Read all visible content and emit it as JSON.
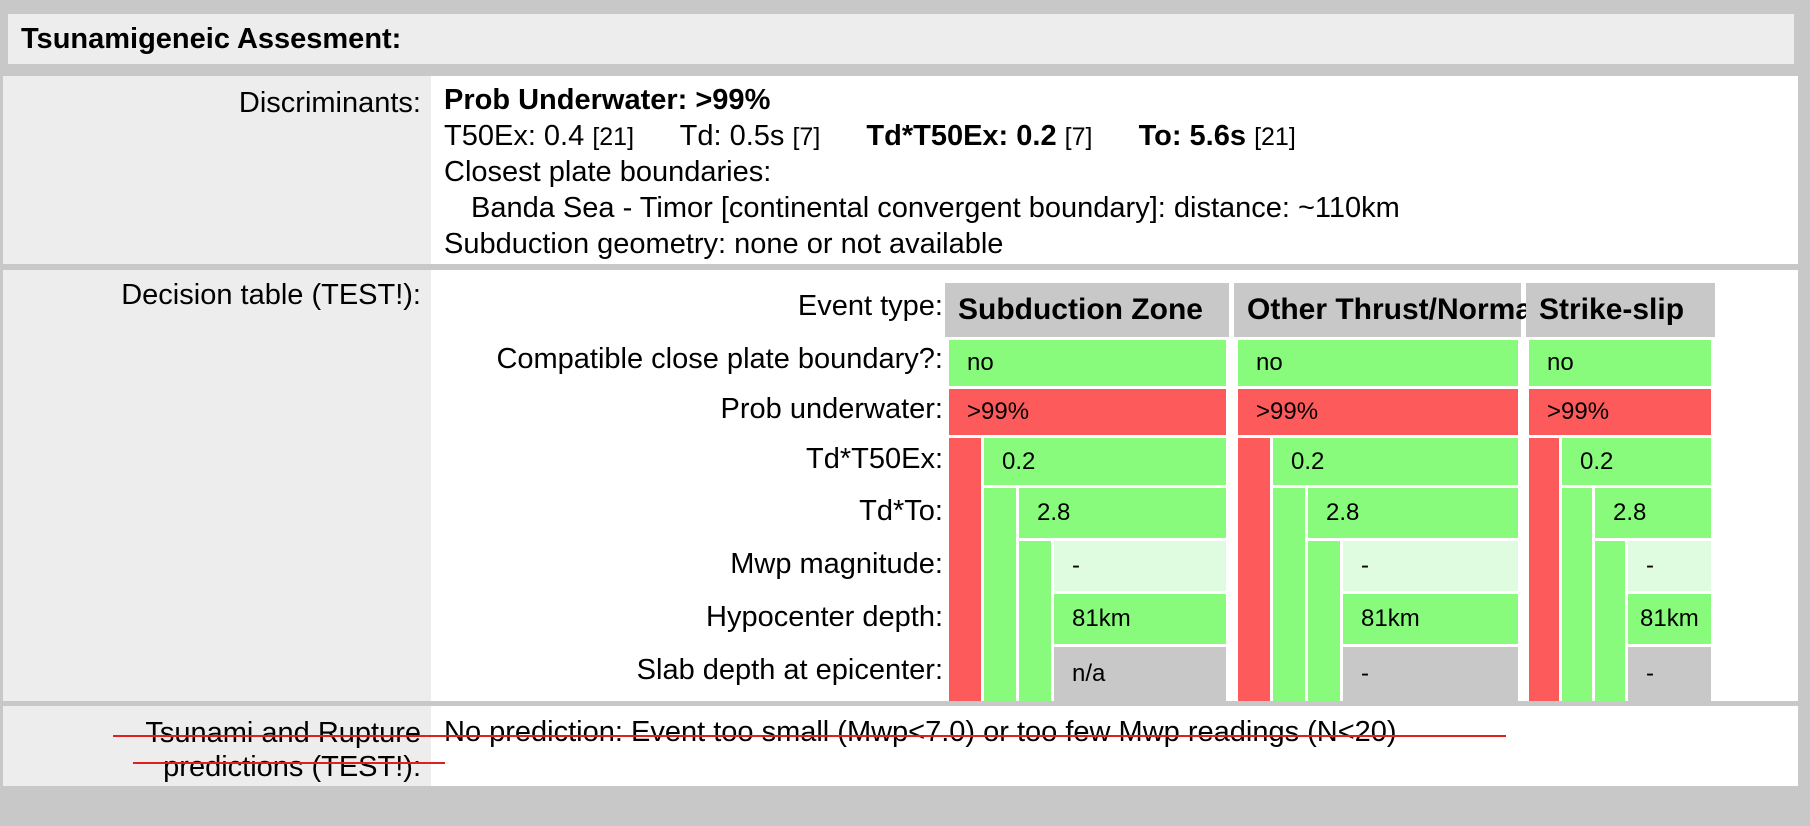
{
  "header": {
    "title": "Tsunamigeneic Assesment:"
  },
  "discriminants": {
    "label": "Discriminants:",
    "prob_underwater": "Prob Underwater: >99%",
    "t50ex": "T50Ex: 0.4",
    "t50ex_n": "[21]",
    "td": "Td: 0.5s",
    "td_n": "[7]",
    "td_t50ex": "Td*T50Ex: 0.2",
    "td_t50ex_n": "[7]",
    "to": "To: 5.6s",
    "to_n": "[21]",
    "closest_title": "Closest plate boundaries:",
    "closest_value": "Banda Sea - Timor [continental convergent boundary]: distance: ~110km",
    "subduction": "Subduction geometry: none or not available"
  },
  "decision": {
    "label": "Decision table (TEST!):",
    "event_type_label": "Event type:",
    "columns": [
      "Subduction Zone",
      "Other Thrust/Normal",
      "Strike-slip"
    ],
    "rows": [
      {
        "label": "Compatible close plate boundary?:",
        "values": [
          "no",
          "no",
          "no"
        ]
      },
      {
        "label": "Prob underwater:",
        "values": [
          ">99%",
          ">99%",
          ">99%"
        ]
      },
      {
        "label": "Td*T50Ex:",
        "values": [
          "0.2",
          "0.2",
          "0.2"
        ]
      },
      {
        "label": "Td*To:",
        "values": [
          "2.8",
          "2.8",
          "2.8"
        ]
      },
      {
        "label": "Mwp magnitude:",
        "values": [
          "-",
          "-",
          "-"
        ]
      },
      {
        "label": "Hypocenter depth:",
        "values": [
          "81km",
          "81km",
          "81km"
        ]
      },
      {
        "label": "Slab depth at epicenter:",
        "values": [
          "n/a",
          "-",
          "-"
        ]
      }
    ],
    "colors": {
      "green": "#88fb7c",
      "red": "#fd5a5c",
      "light_green": "#e0fce0",
      "gray": "#c8c8c8"
    }
  },
  "predictions": {
    "label_line1": "Tsunami and Rupture",
    "label_line2": "predictions (TEST!):",
    "text": "No prediction: Event too small (Mwp<7.0) or too few Mwp readings (N<20)"
  }
}
